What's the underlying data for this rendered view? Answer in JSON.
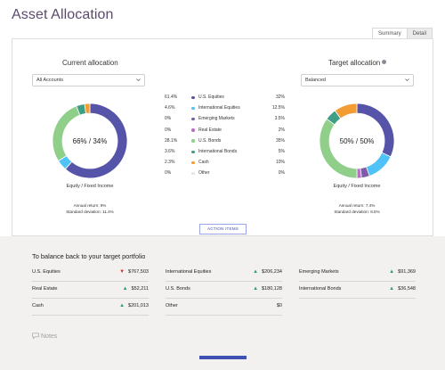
{
  "page": {
    "title": "Asset Allocation"
  },
  "tabs": [
    {
      "label": "Summary",
      "active": true
    },
    {
      "label": "Detail",
      "active": false
    }
  ],
  "current": {
    "heading": "Current allocation",
    "select_value": "All Accounts",
    "center_label": "66% / 34%",
    "sub_label": "Equity / Fixed Income",
    "stats": {
      "annual_return": "Annual return: 9%",
      "std_dev": "Standard deviation: 11.4%"
    }
  },
  "target": {
    "heading": "Target allocation",
    "select_value": "Balanced",
    "center_label": "50% / 50%",
    "sub_label": "Equity / Fixed Income",
    "stats": {
      "annual_return": "Annual return: 7.4%",
      "std_dev": "Standard deviation: 8.5%"
    }
  },
  "legend": [
    {
      "current": "61.4%",
      "name": "U.S. Equities",
      "target": "32%",
      "color": "#5654a8",
      "current_value": 61.4,
      "target_value": 32
    },
    {
      "current": "4.6%",
      "name": "International Equities",
      "target": "12.5%",
      "color": "#4fc3f7",
      "current_value": 4.6,
      "target_value": 12.5
    },
    {
      "current": "0%",
      "name": "Emerging Markets",
      "target": "3.5%",
      "color": "#7b5ea7",
      "current_value": 0,
      "target_value": 3.5
    },
    {
      "current": "0%",
      "name": "Real Estate",
      "target": "2%",
      "color": "#b86fc6",
      "current_value": 0,
      "target_value": 2
    },
    {
      "current": "28.1%",
      "name": "U.S. Bonds",
      "target": "35%",
      "color": "#8fcf8a",
      "current_value": 28.1,
      "target_value": 35
    },
    {
      "current": "3.6%",
      "name": "International Bonds",
      "target": "5%",
      "color": "#3e9e86",
      "current_value": 3.6,
      "target_value": 5
    },
    {
      "current": "2.3%",
      "name": "Cash",
      "target": "10%",
      "color": "#f39c34",
      "current_value": 2.3,
      "target_value": 10
    },
    {
      "current": "0%",
      "name": "Other",
      "target": "0%",
      "color": "#dfe8e8",
      "current_value": 0,
      "target_value": 0
    }
  ],
  "action_button": "ACTION ITEMS",
  "rebalance": {
    "title": "To balance back to your target portfolio",
    "items": [
      {
        "label": "U.S. Equities",
        "value": "$767,503",
        "direction": "down"
      },
      {
        "label": "International Equities",
        "value": "$206,234",
        "direction": "up"
      },
      {
        "label": "Emerging Markets",
        "value": "$91,369",
        "direction": "up"
      },
      {
        "label": "Real Estate",
        "value": "$52,211",
        "direction": "up"
      },
      {
        "label": "U.S. Bonds",
        "value": "$180,128",
        "direction": "up"
      },
      {
        "label": "International Bonds",
        "value": "$36,548",
        "direction": "up"
      },
      {
        "label": "Cash",
        "value": "$201,013",
        "direction": "up"
      },
      {
        "label": "Other",
        "value": "$0",
        "direction": "none"
      }
    ]
  },
  "notes": {
    "label": "Notes"
  },
  "icons": {
    "up": "▲",
    "down": "▼"
  }
}
